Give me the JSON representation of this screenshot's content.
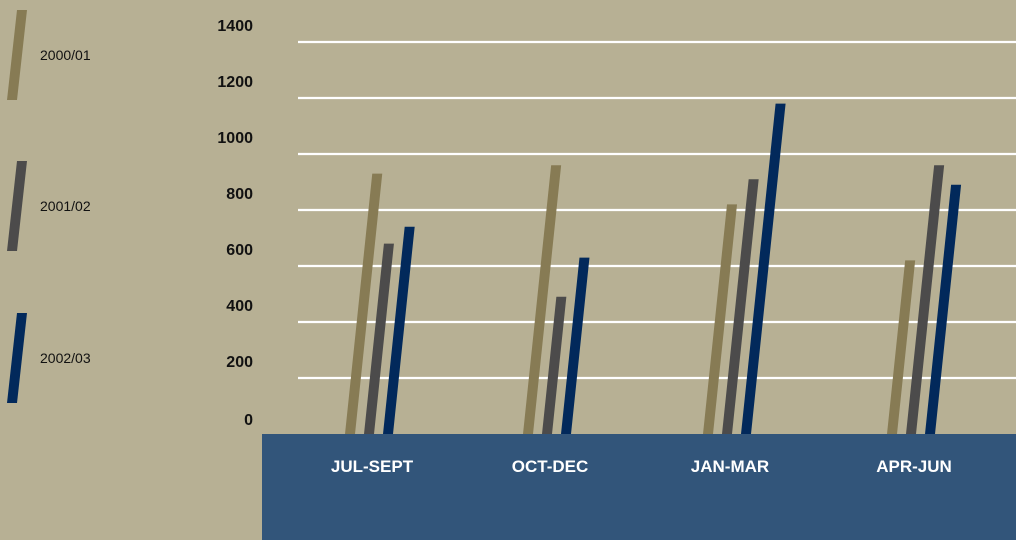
{
  "colors": {
    "background": "#b7b094",
    "floor": "#32557a",
    "gridline": "#ffffff",
    "text_dark": "#111111",
    "text_light": "#ffffff"
  },
  "chart_data": {
    "type": "bar",
    "categories": [
      "JUL-SEPT",
      "OCT-DEC",
      "JAN-MAR",
      "APR-JUN"
    ],
    "series": [
      {
        "name": "2000/01",
        "color": "#877b54",
        "values": [
          930,
          960,
          820,
          620
        ]
      },
      {
        "name": "2001/02",
        "color": "#4c4b4b",
        "values": [
          680,
          490,
          910,
          960
        ]
      },
      {
        "name": "2002/03",
        "color": "#02295b",
        "values": [
          740,
          630,
          1180,
          890
        ]
      }
    ],
    "y_ticks": [
      0,
      200,
      400,
      600,
      800,
      1000,
      1200,
      1400
    ],
    "ylim": [
      0,
      1400
    ],
    "grid": true,
    "legend_position": "left"
  }
}
